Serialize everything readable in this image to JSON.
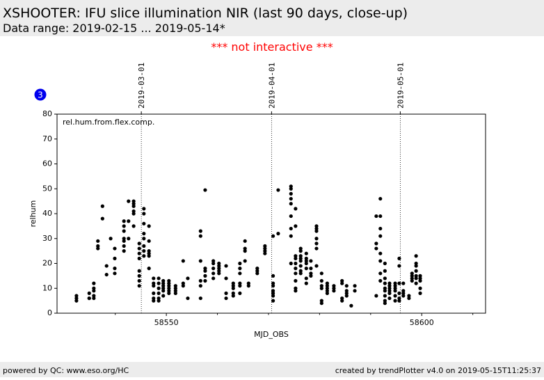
{
  "header": {
    "title": "XSHOOTER: IFU slice illumination NIR (last 90 days, close-up)",
    "subtitle": "Data range: 2019-02-15 ... 2019-05-14*"
  },
  "notice": "*** not interactive ***",
  "badge": "3",
  "footer": {
    "left": "powered by QC: www.eso.org/HC",
    "right": "created by trendPlotter v4.0 on 2019-05-15T11:25:37"
  },
  "chart_data": {
    "type": "scatter",
    "color": "#000000",
    "annotation": "rel.hum.from.flex.comp.",
    "x_label": "MJD_OBS",
    "y_label": "relhum",
    "xlim": [
      58528.6,
      58612.5
    ],
    "ylim": [
      0,
      80
    ],
    "xticks": [
      58550,
      58600
    ],
    "xminorticks": [
      58540,
      58560,
      58570,
      58580,
      58590,
      58610
    ],
    "yticks": [
      0,
      10,
      20,
      30,
      40,
      50,
      60,
      70,
      80
    ],
    "markers": [
      {
        "value": 58545.1,
        "label": "2019-03-01"
      },
      {
        "value": 58570.6,
        "label": "2019-04-01"
      },
      {
        "value": 58595.8,
        "label": "2019-05-01"
      }
    ],
    "x": [
      58532.4,
      58532.4,
      58532.4,
      58534.9,
      58534.9,
      58534.9,
      58535.8,
      58535.8,
      58535.8,
      58535.8,
      58535.8,
      58536.6,
      58536.6,
      58536.6,
      58537.5,
      58537.5,
      58538.3,
      58538.3,
      58539.1,
      58539.9,
      58539.9,
      58539.9,
      58539.9,
      58541.7,
      58541.7,
      58541.7,
      58541.7,
      58541.7,
      58541.7,
      58541.7,
      58542.6,
      58542.6,
      58542.6,
      58543.6,
      58543.6,
      58543.6,
      58543.6,
      58543.6,
      58543.6,
      58544.7,
      58544.7,
      58544.7,
      58544.7,
      58544.7,
      58544.7,
      58544.7,
      58544.7,
      58545.6,
      58545.6,
      58545.6,
      58545.6,
      58545.6,
      58545.6,
      58545.6,
      58545.6,
      58546.6,
      58546.6,
      58546.6,
      58546.6,
      58546.6,
      58546.6,
      58547.5,
      58547.5,
      58547.5,
      58547.5,
      58547.5,
      58547.5,
      58548.5,
      58548.5,
      58548.5,
      58548.5,
      58548.5,
      58548.5,
      58549.4,
      58549.4,
      58549.4,
      58549.4,
      58549.4,
      58549.4,
      58550.5,
      58550.5,
      58550.5,
      58550.5,
      58550.5,
      58550.5,
      58551.8,
      58551.8,
      58551.8,
      58551.8,
      58553.3,
      58553.3,
      58553.3,
      58554.2,
      58554.2,
      58556.7,
      58556.7,
      58556.7,
      58556.7,
      58556.7,
      58556.7,
      58557.6,
      58557.6,
      58557.6,
      58557.6,
      58557.6,
      58559.2,
      58559.2,
      58559.2,
      58559.2,
      58559.2,
      58560.3,
      58560.3,
      58560.3,
      58560.3,
      58560.3,
      58561.7,
      58561.7,
      58561.7,
      58561.7,
      58563.1,
      58563.1,
      58563.1,
      58563.1,
      58563.1,
      58564.4,
      58564.4,
      58564.4,
      58564.4,
      58564.4,
      58564.4,
      58565.4,
      58565.4,
      58565.4,
      58565.4,
      58566.1,
      58566.1,
      58567.8,
      58567.8,
      58567.8,
      58569.3,
      58569.3,
      58569.3,
      58569.3,
      58570.9,
      58570.9,
      58570.9,
      58570.9,
      58570.9,
      58570.9,
      58570.9,
      58570.9,
      58571.9,
      58571.9,
      58574.4,
      58574.4,
      58574.4,
      58574.4,
      58574.4,
      58574.4,
      58574.4,
      58574.4,
      58574.4,
      58575.3,
      58575.3,
      58575.3,
      58575.3,
      58575.3,
      58575.3,
      58575.3,
      58575.3,
      58575.3,
      58575.3,
      58576.3,
      58576.3,
      58576.3,
      58576.3,
      58576.3,
      58576.3,
      58576.3,
      58576.3,
      58577.4,
      58577.4,
      58577.4,
      58577.4,
      58577.4,
      58577.4,
      58577.4,
      58578.3,
      58578.3,
      58578.3,
      58578.3,
      58579.4,
      58579.4,
      58579.4,
      58579.4,
      58579.4,
      58579.4,
      58579.4,
      58580.4,
      58580.4,
      58580.4,
      58580.4,
      58580.4,
      58580.4,
      58581.5,
      58581.5,
      58581.5,
      58581.5,
      58581.5,
      58582.8,
      58582.8,
      58582.8,
      58584.4,
      58584.4,
      58584.4,
      58584.4,
      58585.3,
      58585.3,
      58585.3,
      58585.3,
      58586.2,
      58586.9,
      58586.9,
      58591.1,
      58591.1,
      58591.1,
      58591.1,
      58591.9,
      58591.9,
      58591.9,
      58591.9,
      58591.9,
      58591.9,
      58591.9,
      58591.9,
      58592.8,
      58592.8,
      58592.8,
      58592.8,
      58592.8,
      58592.8,
      58592.8,
      58592.8,
      58592.8,
      58593.7,
      58593.7,
      58593.7,
      58593.7,
      58593.7,
      58593.7,
      58594.8,
      58594.8,
      58594.8,
      58594.8,
      58594.8,
      58594.8,
      58595.6,
      58595.6,
      58595.6,
      58595.6,
      58595.6,
      58595.6,
      58596.4,
      58596.4,
      58596.4,
      58596.4,
      58597.5,
      58597.5,
      58598.1,
      58598.1,
      58598.1,
      58598.1,
      58598.9,
      58598.9,
      58598.9,
      58598.9,
      58598.9,
      58598.9,
      58598.9,
      58599.7,
      58599.7,
      58599.7,
      58599.7,
      58599.7
    ],
    "values": [
      5,
      6,
      7,
      6,
      8,
      6,
      6,
      9,
      10,
      12,
      7,
      29,
      27,
      26,
      43,
      38,
      19,
      15.5,
      30,
      18,
      16,
      22,
      26,
      27,
      29,
      30,
      25,
      33,
      35,
      37,
      45,
      37,
      30,
      45,
      44,
      43,
      41,
      40,
      35,
      17,
      15,
      13,
      11,
      24,
      22,
      26,
      28,
      30,
      27,
      25,
      23,
      40,
      42,
      36,
      32,
      25,
      24,
      23,
      18,
      35,
      29,
      5,
      6,
      8,
      11,
      12,
      14,
      5,
      6,
      8,
      10,
      12,
      14,
      7,
      9,
      10,
      11,
      12,
      13,
      8,
      9,
      10,
      11,
      12,
      13,
      9,
      10,
      11,
      8,
      12,
      11,
      21,
      6,
      14,
      6,
      11,
      13,
      21,
      31,
      33,
      13,
      15,
      17,
      18,
      49.5,
      14,
      16,
      18,
      20,
      21,
      18,
      19,
      17,
      16,
      20,
      6,
      8,
      14,
      19,
      7,
      8,
      10,
      11,
      12,
      8,
      11,
      12,
      16,
      18,
      20,
      25,
      26,
      29,
      21,
      11,
      12,
      16,
      17,
      18,
      24,
      26,
      27,
      25,
      5,
      7,
      8,
      9,
      11,
      12,
      15,
      31,
      49.5,
      32,
      20,
      31,
      34,
      39,
      44,
      46,
      48,
      50,
      51,
      9,
      10,
      13,
      16,
      18,
      20,
      22,
      23,
      35,
      42,
      16,
      17,
      19,
      21,
      22,
      23,
      25,
      26,
      12,
      14,
      18,
      20,
      21,
      22,
      24,
      15,
      16,
      18,
      21,
      26,
      28,
      30,
      33,
      34,
      35,
      19,
      4,
      5,
      10,
      11,
      13,
      16,
      8,
      9,
      10,
      11,
      12,
      9,
      10,
      11,
      5,
      6,
      12,
      13,
      7,
      8,
      9,
      11,
      3,
      9,
      11,
      7,
      26,
      28,
      39,
      46,
      39,
      34,
      31,
      24,
      21,
      16,
      13,
      4,
      5,
      7,
      9,
      10,
      12,
      14,
      17,
      20,
      6,
      8,
      9,
      10,
      11,
      12,
      5,
      7,
      9,
      10,
      11,
      12,
      5,
      6,
      8,
      12,
      19,
      22,
      7,
      8,
      9,
      12,
      6,
      7,
      13,
      14,
      15,
      16,
      12,
      14,
      15,
      17,
      19,
      20,
      23,
      8,
      10,
      13,
      14,
      15
    ]
  }
}
